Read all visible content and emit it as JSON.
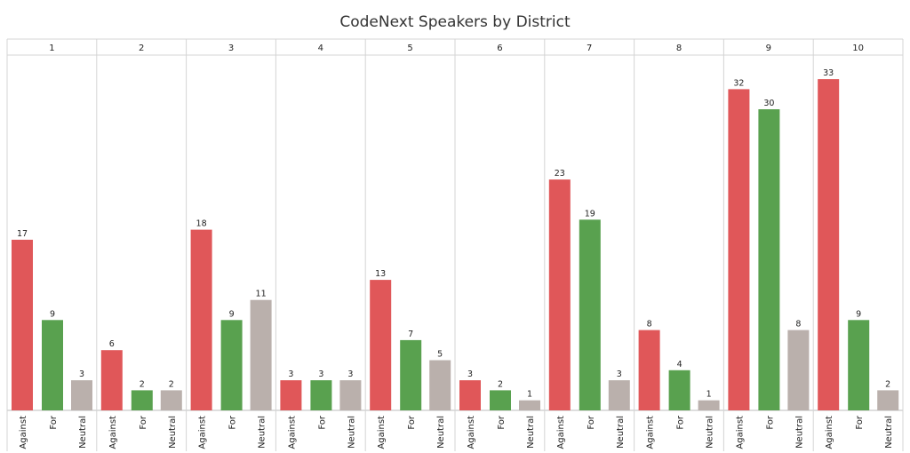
{
  "chart_data": {
    "type": "bar",
    "title": "CodeNext Speakers by District",
    "panels": [
      "1",
      "2",
      "3",
      "4",
      "5",
      "6",
      "7",
      "8",
      "9",
      "10"
    ],
    "categories": [
      "Against",
      "For",
      "Neutral"
    ],
    "colors": {
      "Against": "#e05759",
      "For": "#59a14f",
      "Neutral": "#bab0ac"
    },
    "values": [
      [
        17,
        9,
        3
      ],
      [
        6,
        2,
        2
      ],
      [
        18,
        9,
        11
      ],
      [
        3,
        3,
        3
      ],
      [
        13,
        7,
        5
      ],
      [
        3,
        2,
        1
      ],
      [
        23,
        19,
        3
      ],
      [
        8,
        4,
        1
      ],
      [
        32,
        30,
        8
      ],
      [
        33,
        9,
        2
      ]
    ],
    "ylim": [
      0,
      35
    ],
    "grid": false,
    "legend": "none"
  }
}
